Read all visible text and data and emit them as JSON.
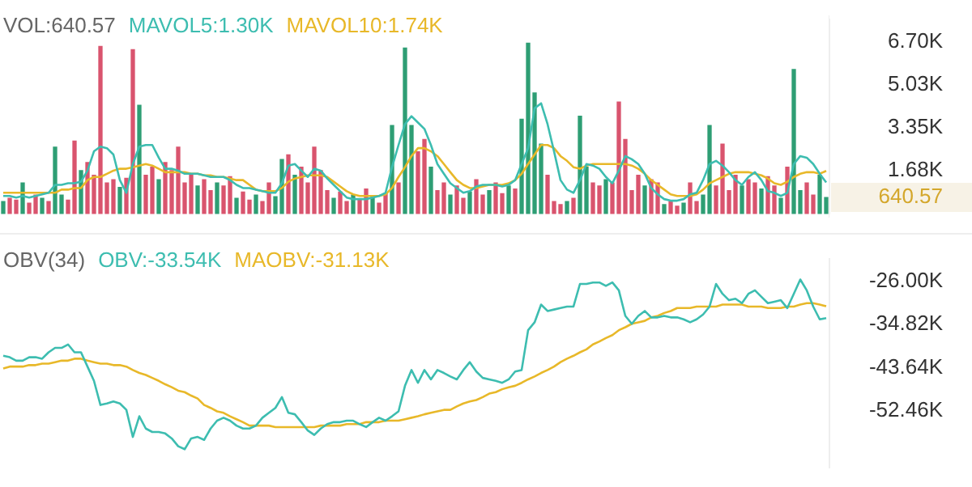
{
  "chart_data": [
    {
      "type": "bar",
      "title": "VOL:640.57",
      "tick_labels": "y",
      "categories": [
        null,
        null,
        null,
        null,
        null,
        null,
        null,
        null,
        null,
        null,
        null,
        null,
        null,
        null,
        null,
        null,
        null,
        null,
        null,
        null,
        null,
        null,
        null,
        null,
        null,
        null,
        null,
        null,
        null,
        null,
        null,
        null,
        null,
        null,
        null,
        null,
        null,
        null,
        null,
        null,
        null,
        null,
        null,
        null,
        null,
        null,
        null,
        null,
        null,
        null,
        null,
        null,
        null,
        null,
        null,
        null,
        null,
        null,
        null,
        null,
        null,
        null,
        null,
        null,
        null,
        null,
        null,
        null,
        null,
        null,
        null,
        null,
        null,
        null,
        null,
        null,
        null,
        null,
        null,
        null,
        null,
        null,
        null,
        null,
        null,
        null,
        null,
        null,
        null,
        null,
        null,
        null,
        null,
        null,
        null,
        null,
        null,
        null,
        null,
        null,
        null,
        null,
        null,
        null,
        null,
        null,
        null,
        null,
        null,
        null,
        null,
        null,
        null,
        null,
        null,
        null,
        null,
        null,
        null,
        null,
        null,
        null,
        null,
        null,
        null,
        null,
        null,
        null
      ],
      "ylim": [
        0,
        7600
      ],
      "yticks": [
        {
          "value": 1680,
          "label": "1.68K"
        },
        {
          "value": 3350,
          "label": "3.35K"
        },
        {
          "value": 5030,
          "label": "5.03K"
        },
        {
          "value": 6700,
          "label": "6.70K"
        }
      ],
      "annotations": [
        "640.57"
      ],
      "values": [
        480,
        610,
        540,
        1210,
        420,
        730,
        610,
        480,
        2600,
        730,
        540,
        2840,
        1690,
        2000,
        1510,
        6530,
        1210,
        1330,
        1030,
        1390,
        6410,
        4240,
        1510,
        1820,
        1330,
        2000,
        1690,
        2600,
        1210,
        1510,
        1090,
        1330,
        910,
        1210,
        1090,
        1450,
        610,
        850,
        540,
        730,
        480,
        1210,
        670,
        2120,
        2300,
        1510,
        1820,
        1210,
        2600,
        1690,
        910,
        610,
        850,
        480,
        730,
        540,
        970,
        670,
        420,
        790,
        3450,
        1210,
        6470,
        3450,
        2420,
        2900,
        1820,
        910,
        1210,
        730,
        1090,
        610,
        850,
        1330,
        730,
        910,
        1210,
        790,
        1090,
        970,
        3690,
        6660,
        4720,
        2720,
        1510,
        480,
        360,
        480,
        610,
        3810,
        1820,
        1210,
        1090,
        1330,
        1210,
        4360,
        2900,
        910,
        1510,
        1090,
        1330,
        1210,
        360,
        480,
        300,
        420,
        1210,
        480,
        730,
        3450,
        1090,
        2720,
        910,
        1510,
        1090,
        1330,
        1210,
        970,
        1450,
        1090,
        610,
        1820,
        5630,
        910,
        1210,
        730,
        1510,
        640.57
      ],
      "colors": [
        "#2e9e74",
        "#d9546e",
        "#d9546e",
        "#2e9e74",
        "#d9546e",
        "#d9546e",
        "#2e9e74",
        "#d9546e",
        "#2e9e74",
        "#2e9e74",
        "#d9546e",
        "#d9546e",
        "#2e9e74",
        "#d9546e",
        "#d9546e",
        "#d9546e",
        "#d9546e",
        "#d9546e",
        "#2e9e74",
        "#d9546e",
        "#d9546e",
        "#2e9e74",
        "#d9546e",
        "#d9546e",
        "#2e9e74",
        "#d9546e",
        "#d9546e",
        "#d9546e",
        "#d9546e",
        "#d9546e",
        "#2e9e74",
        "#d9546e",
        "#d9546e",
        "#2e9e74",
        "#d9546e",
        "#d9546e",
        "#2e9e74",
        "#d9546e",
        "#d9546e",
        "#2e9e74",
        "#d9546e",
        "#d9546e",
        "#2e9e74",
        "#2e9e74",
        "#d9546e",
        "#2e9e74",
        "#d9546e",
        "#d9546e",
        "#d9546e",
        "#d9546e",
        "#d9546e",
        "#2e9e74",
        "#d9546e",
        "#d9546e",
        "#2e9e74",
        "#d9546e",
        "#d9546e",
        "#2e9e74",
        "#d9546e",
        "#d9546e",
        "#2e9e74",
        "#d9546e",
        "#2e9e74",
        "#2e9e74",
        "#d9546e",
        "#d9546e",
        "#2e9e74",
        "#d9546e",
        "#d9546e",
        "#2e9e74",
        "#d9546e",
        "#d9546e",
        "#2e9e74",
        "#d9546e",
        "#d9546e",
        "#2e9e74",
        "#d9546e",
        "#d9546e",
        "#2e9e74",
        "#d9546e",
        "#2e9e74",
        "#2e9e74",
        "#2e9e74",
        "#2e9e74",
        "#d9546e",
        "#d9546e",
        "#d9546e",
        "#2e9e74",
        "#d9546e",
        "#2e9e74",
        "#2e9e74",
        "#d9546e",
        "#d9546e",
        "#2e9e74",
        "#d9546e",
        "#d9546e",
        "#d9546e",
        "#d9546e",
        "#d9546e",
        "#2e9e74",
        "#d9546e",
        "#d9546e",
        "#2e9e74",
        "#d9546e",
        "#d9546e",
        "#2e9e74",
        "#d9546e",
        "#d9546e",
        "#2e9e74",
        "#2e9e74",
        "#d9546e",
        "#d9546e",
        "#d9546e",
        "#d9546e",
        "#2e9e74",
        "#d9546e",
        "#d9546e",
        "#2e9e74",
        "#d9546e",
        "#d9546e",
        "#2e9e74",
        "#d9546e",
        "#2e9e74",
        "#2e9e74",
        "#d9546e",
        "#d9546e",
        "#2e9e74",
        "#2e9e74"
      ]
    },
    {
      "type": "line",
      "tick_labels": false,
      "marker": "none",
      "categories": [
        null,
        null,
        null,
        null,
        null,
        null,
        null,
        null,
        null,
        null,
        null,
        null,
        null,
        null,
        null,
        null,
        null,
        null,
        null,
        null,
        null,
        null,
        null,
        null,
        null,
        null,
        null,
        null,
        null,
        null,
        null,
        null,
        null,
        null,
        null,
        null,
        null,
        null,
        null,
        null,
        null,
        null,
        null,
        null,
        null,
        null,
        null,
        null,
        null,
        null,
        null,
        null,
        null,
        null,
        null,
        null,
        null,
        null,
        null,
        null,
        null,
        null,
        null,
        null,
        null,
        null,
        null,
        null,
        null,
        null,
        null,
        null,
        null,
        null,
        null,
        null,
        null,
        null,
        null,
        null,
        null,
        null,
        null,
        null,
        null,
        null,
        null,
        null,
        null,
        null,
        null,
        null,
        null,
        null,
        null,
        null,
        null,
        null,
        null,
        null,
        null,
        null,
        null,
        null,
        null,
        null,
        null,
        null,
        null,
        null,
        null,
        null,
        null,
        null,
        null,
        null,
        null,
        null,
        null,
        null,
        null,
        null,
        null,
        null,
        null,
        null,
        null,
        null
      ],
      "ylim": [
        0,
        7600
      ],
      "series": [
        {
          "name": "MAVOL5:1.30K",
          "color": "#3dbdb0",
          "values": [
            790,
            790,
            730,
            790,
            730,
            790,
            850,
            910,
            1210,
            1210,
            1270,
            1270,
            1330,
            1750,
            2480,
            2660,
            2600,
            2360,
            1390,
            910,
            2000,
            2660,
            2720,
            2720,
            2240,
            1820,
            1820,
            1750,
            1630,
            1630,
            1630,
            1570,
            1510,
            1510,
            1510,
            1390,
            1210,
            1090,
            1090,
            1030,
            970,
            910,
            910,
            1270,
            1940,
            2000,
            1750,
            1510,
            1820,
            1750,
            1450,
            1210,
            970,
            730,
            670,
            670,
            670,
            730,
            790,
            910,
            1880,
            2720,
            3510,
            3810,
            3570,
            3330,
            2720,
            2000,
            1630,
            1270,
            1090,
            910,
            970,
            1150,
            1210,
            1210,
            1210,
            1150,
            1210,
            1390,
            2000,
            2600,
            4110,
            4300,
            3510,
            2480,
            1390,
            1030,
            910,
            1390,
            2000,
            1940,
            1820,
            1510,
            1270,
            1750,
            2300,
            2180,
            2000,
            1630,
            1090,
            850,
            670,
            610,
            610,
            670,
            850,
            910,
            1390,
            2000,
            2120,
            1940,
            1690,
            1390,
            1210,
            1510,
            1690,
            1390,
            970,
            910,
            790,
            910,
            2000,
            2300,
            2240,
            2000,
            1630,
            1300
          ]
        },
        {
          "name": "MAVOL10:1.74K",
          "color": "#e8b829",
          "values": [
            910,
            910,
            910,
            910,
            910,
            910,
            910,
            910,
            910,
            1030,
            1030,
            1090,
            1090,
            1390,
            1510,
            1510,
            1630,
            1750,
            1820,
            1820,
            1880,
            1940,
            2000,
            1940,
            1820,
            1690,
            1690,
            1690,
            1690,
            1630,
            1630,
            1570,
            1570,
            1510,
            1510,
            1450,
            1390,
            1390,
            1210,
            1030,
            970,
            970,
            970,
            1090,
            1330,
            1450,
            1510,
            1570,
            1570,
            1570,
            1510,
            1330,
            1150,
            970,
            850,
            790,
            790,
            790,
            790,
            850,
            1090,
            1510,
            1880,
            2300,
            2600,
            2600,
            2480,
            2300,
            2000,
            1690,
            1390,
            1210,
            1090,
            1090,
            1150,
            1210,
            1210,
            1210,
            1270,
            1390,
            1630,
            2000,
            2360,
            2720,
            2720,
            2600,
            2300,
            2120,
            1880,
            1820,
            1940,
            2000,
            2000,
            2000,
            2000,
            2000,
            2000,
            1940,
            1820,
            1630,
            1390,
            1210,
            1030,
            850,
            790,
            790,
            790,
            850,
            1030,
            1270,
            1390,
            1510,
            1630,
            1690,
            1690,
            1690,
            1630,
            1570,
            1450,
            1270,
            1210,
            1330,
            1510,
            1630,
            1690,
            1690,
            1630,
            1740
          ]
        }
      ]
    },
    {
      "type": "line",
      "title": "OBV(34)",
      "tick_labels": "y",
      "marker": "none",
      "categories": [
        null,
        null,
        null,
        null,
        null,
        null,
        null,
        null,
        null,
        null,
        null,
        null,
        null,
        null,
        null,
        null,
        null,
        null,
        null,
        null,
        null,
        null,
        null,
        null,
        null,
        null,
        null,
        null,
        null,
        null,
        null,
        null,
        null,
        null,
        null,
        null,
        null,
        null,
        null,
        null,
        null,
        null,
        null,
        null,
        null,
        null,
        null,
        null,
        null,
        null,
        null,
        null,
        null,
        null,
        null,
        null,
        null,
        null,
        null,
        null,
        null,
        null,
        null,
        null,
        null,
        null,
        null,
        null,
        null,
        null,
        null,
        null,
        null,
        null,
        null,
        null,
        null,
        null,
        null,
        null,
        null,
        null,
        null,
        null,
        null,
        null,
        null,
        null,
        null,
        null,
        null,
        null,
        null,
        null,
        null,
        null,
        null,
        null,
        null,
        null,
        null,
        null,
        null,
        null,
        null,
        null,
        null,
        null,
        null,
        null,
        null,
        null,
        null,
        null,
        null,
        null,
        null,
        null,
        null,
        null,
        null,
        null,
        null,
        null,
        null,
        null,
        null,
        null
      ],
      "ylim": [
        -64000,
        -21500
      ],
      "yticks": [
        {
          "value": -52460,
          "label": "-52.46K"
        },
        {
          "value": -43640,
          "label": "-43.64K"
        },
        {
          "value": -34820,
          "label": "-34.82K"
        },
        {
          "value": -26000,
          "label": "-26.00K"
        }
      ],
      "series": [
        {
          "name": "OBV:-33.54K",
          "color": "#3dbdb0",
          "values": [
            -41200,
            -41500,
            -42200,
            -42200,
            -41500,
            -41500,
            -41800,
            -40500,
            -39600,
            -39600,
            -38900,
            -40500,
            -40500,
            -43400,
            -46300,
            -51200,
            -50900,
            -50500,
            -50900,
            -52200,
            -57700,
            -53500,
            -56000,
            -56700,
            -56700,
            -57000,
            -58000,
            -59600,
            -60200,
            -58000,
            -57700,
            -58300,
            -56000,
            -54400,
            -53800,
            -54400,
            -55400,
            -56000,
            -56000,
            -55400,
            -53800,
            -52800,
            -51800,
            -49600,
            -52800,
            -53100,
            -54700,
            -56400,
            -57300,
            -56000,
            -55100,
            -54700,
            -54700,
            -54400,
            -54400,
            -55100,
            -55700,
            -54700,
            -53800,
            -54400,
            -53500,
            -52500,
            -47300,
            -44100,
            -46700,
            -44100,
            -46000,
            -44100,
            -44700,
            -45400,
            -46000,
            -44100,
            -42500,
            -44400,
            -45700,
            -46000,
            -46300,
            -46700,
            -46000,
            -44400,
            -44100,
            -36000,
            -34400,
            -30800,
            -32100,
            -31800,
            -31500,
            -31200,
            -31200,
            -26600,
            -26600,
            -26300,
            -26300,
            -27000,
            -26300,
            -27900,
            -33100,
            -34700,
            -33100,
            -32100,
            -33400,
            -33400,
            -33100,
            -33400,
            -33400,
            -33800,
            -34400,
            -33800,
            -32800,
            -31200,
            -26600,
            -28600,
            -29900,
            -29600,
            -30500,
            -28600,
            -27900,
            -29200,
            -30500,
            -30200,
            -29900,
            -31500,
            -28600,
            -25700,
            -27900,
            -31200,
            -33800,
            -33540
          ]
        },
        {
          "name": "MAOBV:-31.13K",
          "color": "#e8b829",
          "values": [
            -43800,
            -43400,
            -43400,
            -43400,
            -43100,
            -43100,
            -42800,
            -42800,
            -42500,
            -42200,
            -42200,
            -41800,
            -41800,
            -42200,
            -42500,
            -42800,
            -42800,
            -43100,
            -43100,
            -43400,
            -44100,
            -44700,
            -45100,
            -45700,
            -46300,
            -47000,
            -47600,
            -48300,
            -48600,
            -49300,
            -49900,
            -51200,
            -51800,
            -52500,
            -52800,
            -53500,
            -54100,
            -54700,
            -55400,
            -55400,
            -55400,
            -55400,
            -55700,
            -55700,
            -55700,
            -55700,
            -55700,
            -55700,
            -55700,
            -55400,
            -55400,
            -55400,
            -55400,
            -55100,
            -55100,
            -55100,
            -54700,
            -54700,
            -54700,
            -54400,
            -54400,
            -54400,
            -54100,
            -53800,
            -53500,
            -53100,
            -52800,
            -52500,
            -52200,
            -52200,
            -51500,
            -50900,
            -50500,
            -50200,
            -49600,
            -48900,
            -48600,
            -48000,
            -47600,
            -47300,
            -46700,
            -46000,
            -45400,
            -44700,
            -44100,
            -43400,
            -42500,
            -41800,
            -41200,
            -40500,
            -39900,
            -38900,
            -38300,
            -37600,
            -37000,
            -36000,
            -35400,
            -34700,
            -34400,
            -34100,
            -33400,
            -33100,
            -32500,
            -32100,
            -31500,
            -31500,
            -31500,
            -31200,
            -31200,
            -31200,
            -31200,
            -30800,
            -30800,
            -30800,
            -30800,
            -31200,
            -31200,
            -31200,
            -31500,
            -31500,
            -31500,
            -31200,
            -31200,
            -30800,
            -30500,
            -30500,
            -30800,
            -31130
          ]
        }
      ]
    }
  ]
}
